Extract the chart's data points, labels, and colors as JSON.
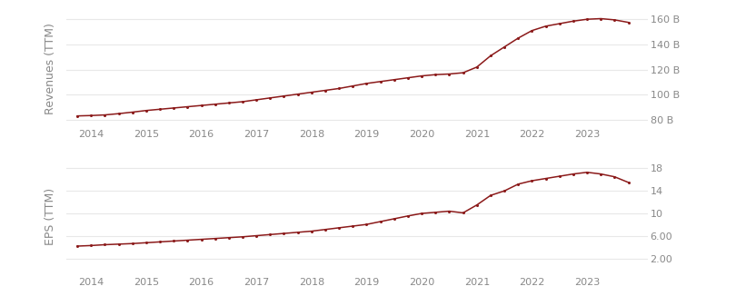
{
  "revenue_x": [
    2013.75,
    2014.0,
    2014.25,
    2014.5,
    2014.75,
    2015.0,
    2015.25,
    2015.5,
    2015.75,
    2016.0,
    2016.25,
    2016.5,
    2016.75,
    2017.0,
    2017.25,
    2017.5,
    2017.75,
    2018.0,
    2018.25,
    2018.5,
    2018.75,
    2019.0,
    2019.25,
    2019.5,
    2019.75,
    2020.0,
    2020.25,
    2020.5,
    2020.75,
    2021.0,
    2021.25,
    2021.5,
    2021.75,
    2022.0,
    2022.25,
    2022.5,
    2022.75,
    2023.0,
    2023.25,
    2023.5,
    2023.75
  ],
  "revenue_y": [
    83.2,
    83.5,
    84.0,
    85.0,
    86.2,
    87.5,
    88.5,
    89.5,
    90.5,
    91.5,
    92.5,
    93.5,
    94.5,
    96.0,
    97.5,
    99.0,
    100.5,
    102.0,
    103.5,
    105.0,
    107.0,
    109.0,
    110.5,
    112.0,
    113.5,
    115.0,
    116.0,
    116.5,
    117.5,
    122.0,
    131.0,
    138.0,
    145.0,
    151.0,
    154.5,
    156.5,
    158.5,
    160.0,
    160.5,
    159.5,
    157.5
  ],
  "eps_x": [
    2013.75,
    2014.0,
    2014.25,
    2014.5,
    2014.75,
    2015.0,
    2015.25,
    2015.5,
    2015.75,
    2016.0,
    2016.25,
    2016.5,
    2016.75,
    2017.0,
    2017.25,
    2017.5,
    2017.75,
    2018.0,
    2018.25,
    2018.5,
    2018.75,
    2019.0,
    2019.25,
    2019.5,
    2019.75,
    2020.0,
    2020.25,
    2020.5,
    2020.75,
    2021.0,
    2021.25,
    2021.5,
    2021.75,
    2022.0,
    2022.25,
    2022.5,
    2022.75,
    2023.0,
    2023.25,
    2023.5,
    2023.75
  ],
  "eps_y": [
    4.2,
    4.3,
    4.45,
    4.55,
    4.65,
    4.8,
    4.95,
    5.1,
    5.25,
    5.4,
    5.55,
    5.7,
    5.85,
    6.05,
    6.25,
    6.45,
    6.65,
    6.85,
    7.15,
    7.45,
    7.75,
    8.05,
    8.55,
    9.05,
    9.55,
    10.0,
    10.2,
    10.4,
    10.1,
    11.5,
    13.2,
    14.0,
    15.2,
    15.8,
    16.2,
    16.6,
    17.0,
    17.3,
    17.0,
    16.5,
    15.5
  ],
  "line_color": "#8B1A1A",
  "bg_color": "#ffffff",
  "grid_color": "#e8e8e8",
  "revenue_yticks": [
    80,
    100,
    120,
    140,
    160
  ],
  "revenue_ytick_labels": [
    "80 B",
    "100 B",
    "120 B",
    "140 B",
    "160 B"
  ],
  "eps_yticks": [
    2,
    6,
    10,
    14,
    18
  ],
  "eps_ytick_labels": [
    "2.00",
    "6.00",
    "10",
    "14",
    "18"
  ],
  "xlim": [
    2013.55,
    2024.1
  ],
  "revenue_ylim": [
    74,
    168
  ],
  "eps_ylim": [
    -1,
    20
  ],
  "xticks": [
    2014,
    2015,
    2016,
    2017,
    2018,
    2019,
    2020,
    2021,
    2022,
    2023
  ],
  "revenue_ylabel": "Revenues (TTM)",
  "eps_ylabel": "EPS (TTM)",
  "tick_fontsize": 8,
  "label_fontsize": 9,
  "tick_color": "#888888"
}
